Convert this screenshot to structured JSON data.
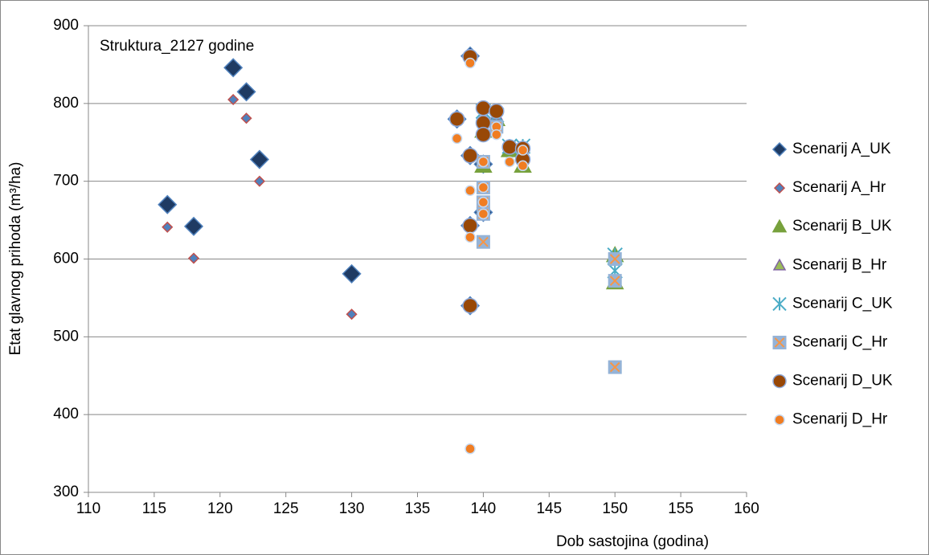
{
  "chart_data": {
    "type": "scatter",
    "title": "Struktura_2127 godine",
    "x_label": "Dob sastojina (godina)",
    "y_label": "Etat glavnog prihoda (m³/ha)",
    "xlim": [
      110,
      160
    ],
    "xticks": [
      110,
      115,
      120,
      125,
      130,
      135,
      140,
      145,
      150,
      155,
      160
    ],
    "ylim": [
      300,
      900
    ],
    "yticks": [
      300,
      400,
      500,
      600,
      700,
      800,
      900
    ],
    "grid": true,
    "legend": "right",
    "series": [
      {
        "name": "Scenarij A_UK",
        "color": "#1f3b63",
        "edgecolor": "#4f81bd",
        "marker": "diamond",
        "marker_size": 11,
        "x": [
          116,
          118,
          121,
          122,
          123,
          130,
          138,
          139,
          139,
          139,
          139,
          140,
          140
        ],
        "values": [
          670,
          642,
          846,
          815,
          728,
          581,
          780,
          861,
          733,
          643,
          540,
          722,
          660
        ]
      },
      {
        "name": "Scenarij A_Hr",
        "color": "#4f81bd",
        "edgecolor": "#c0504d",
        "marker": "diamond",
        "marker_size": 6,
        "x": [
          116,
          118,
          121,
          122,
          123,
          130
        ],
        "values": [
          641,
          601,
          805,
          781,
          700,
          529
        ]
      },
      {
        "name": "Scenarij B_UK",
        "color": "#77a13c",
        "edgecolor": "#77a13c",
        "marker": "triangle",
        "marker_size": 10,
        "x": [
          140,
          140,
          141,
          142,
          143,
          150,
          150
        ],
        "values": [
          720,
          765,
          780,
          740,
          720,
          570,
          605
        ]
      },
      {
        "name": "Scenarij B_Hr",
        "color": "#9bbb59",
        "edgecolor": "#8064a2",
        "marker": "triangle",
        "marker_size": 7,
        "x": [
          140,
          141,
          143,
          150
        ],
        "values": [
          770,
          785,
          745,
          600
        ]
      },
      {
        "name": "Scenarij C_UK",
        "color": "#4bacc6",
        "edgecolor": "#4bacc6",
        "marker": "asterisk",
        "marker_size": 9,
        "x": [
          140,
          141,
          142,
          143,
          150,
          150
        ],
        "values": [
          790,
          785,
          745,
          745,
          605,
          585
        ]
      },
      {
        "name": "Scenarij C_Hr",
        "color": "#95b3d7",
        "edgecolor": "#f79646",
        "marker": "square",
        "marker_size": 8,
        "x": [
          140,
          140,
          140,
          140,
          140,
          141,
          150,
          150,
          150
        ],
        "values": [
          725,
          692,
          673,
          658,
          622,
          770,
          600,
          572,
          461
        ]
      },
      {
        "name": "Scenarij D_UK",
        "color": "#984807",
        "edgecolor": "#8eaadb",
        "marker": "circle",
        "marker_size": 9,
        "x": [
          138,
          139,
          139,
          139,
          139,
          140,
          140,
          140,
          141,
          142,
          143,
          143
        ],
        "values": [
          780,
          860,
          733,
          643,
          540,
          794,
          775,
          760,
          790,
          744,
          742,
          728
        ]
      },
      {
        "name": "Scenarij D_Hr",
        "color": "#f07d22",
        "edgecolor": "#c6d9f1",
        "marker": "circle",
        "marker_size": 6,
        "x": [
          138,
          139,
          139,
          139,
          139,
          140,
          140,
          140,
          140,
          141,
          141,
          142,
          143,
          143
        ],
        "values": [
          755,
          852,
          688,
          628,
          356,
          725,
          692,
          673,
          658,
          770,
          760,
          725,
          740,
          720
        ]
      }
    ]
  }
}
